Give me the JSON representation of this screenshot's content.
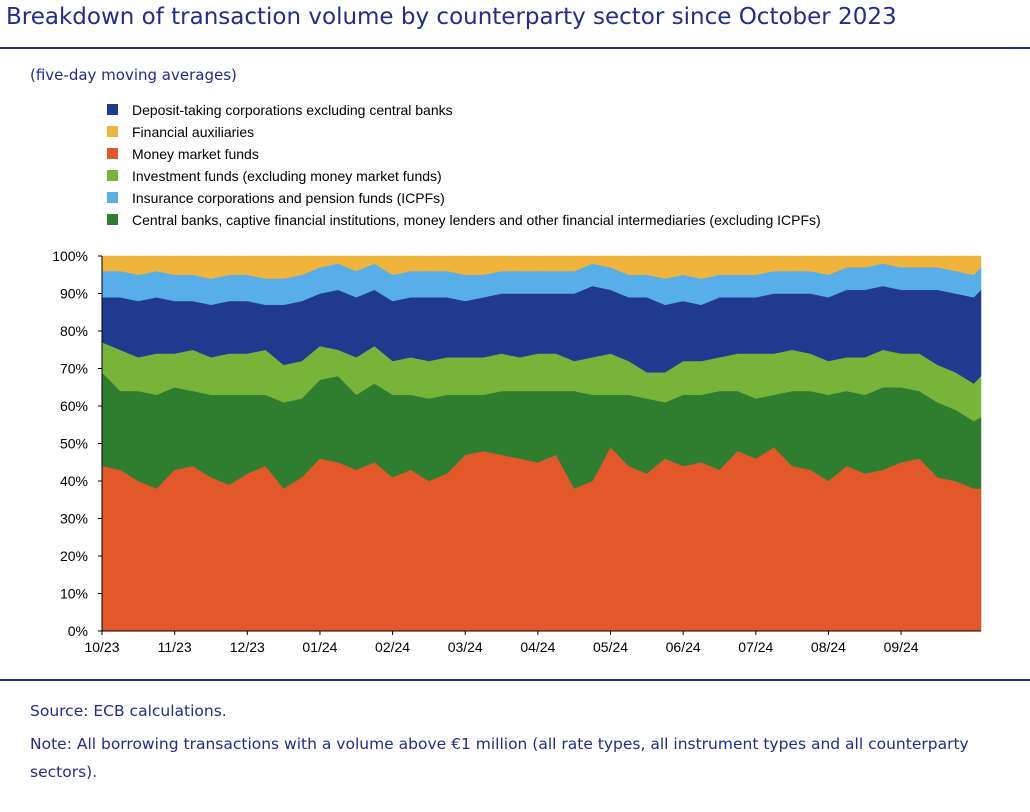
{
  "title": "Breakdown of transaction volume by counterparty sector since October 2023",
  "subtitle": "(five-day moving averages)",
  "source": "Source: ECB calculations.",
  "note": "Note: All borrowing transactions with a volume above €1 million (all rate types, all instrument types and all counterparty sectors).",
  "chart_data": {
    "type": "area",
    "stacked": true,
    "ylim": [
      0,
      100
    ],
    "yticks": [
      "0%",
      "10%",
      "20%",
      "30%",
      "40%",
      "50%",
      "60%",
      "70%",
      "80%",
      "90%",
      "100%"
    ],
    "categories": [
      "10/23",
      "11/23",
      "12/23",
      "01/24",
      "02/24",
      "03/24",
      "04/24",
      "05/24",
      "06/24",
      "07/24",
      "08/24",
      "09/24"
    ],
    "month_starts": [
      0,
      1,
      2,
      3,
      4,
      5,
      6,
      7,
      8,
      9,
      10,
      11
    ],
    "x_end": 12.1,
    "x": [
      0,
      0.25,
      0.5,
      0.75,
      1,
      1.25,
      1.5,
      1.75,
      2,
      2.25,
      2.5,
      2.75,
      3,
      3.25,
      3.5,
      3.75,
      4,
      4.25,
      4.5,
      4.75,
      5,
      5.25,
      5.5,
      5.75,
      6,
      6.25,
      6.5,
      6.75,
      7,
      7.25,
      7.5,
      7.75,
      8,
      8.25,
      8.5,
      8.75,
      9,
      9.25,
      9.5,
      9.75,
      10,
      10.25,
      10.5,
      10.75,
      11,
      11.25,
      11.5,
      11.75,
      12,
      12.1
    ],
    "legend_position": "top-left",
    "series": [
      {
        "name": "Money market funds",
        "color": "#e2582a",
        "values": [
          44,
          43,
          40,
          38,
          43,
          44,
          41,
          39,
          42,
          44,
          38,
          41,
          46,
          45,
          43,
          45,
          41,
          43,
          40,
          42,
          47,
          48,
          47,
          46,
          45,
          47,
          38,
          40,
          49,
          44,
          42,
          46,
          44,
          45,
          43,
          48,
          46,
          49,
          44,
          43,
          40,
          44,
          42,
          43,
          45,
          46,
          41,
          40,
          38,
          38
        ]
      },
      {
        "name": "Central banks, captive financial institutions, money lenders and other financial intermediaries (excluding ICPFs)",
        "color": "#2f7d2f",
        "values": [
          25,
          21,
          24,
          25,
          22,
          20,
          22,
          24,
          21,
          19,
          23,
          21,
          21,
          23,
          20,
          21,
          22,
          20,
          22,
          21,
          16,
          15,
          17,
          18,
          19,
          17,
          26,
          23,
          14,
          19,
          20,
          15,
          19,
          18,
          21,
          16,
          16,
          14,
          20,
          21,
          23,
          20,
          21,
          22,
          20,
          18,
          20,
          19,
          18,
          19
        ]
      },
      {
        "name": "Investment funds (excluding money market funds)",
        "color": "#78b33a",
        "values": [
          8,
          11,
          9,
          11,
          9,
          11,
          10,
          11,
          11,
          12,
          10,
          10,
          9,
          7,
          10,
          10,
          9,
          10,
          10,
          10,
          10,
          10,
          10,
          9,
          10,
          10,
          8,
          10,
          11,
          9,
          7,
          8,
          9,
          9,
          9,
          10,
          12,
          11,
          11,
          10,
          9,
          9,
          10,
          10,
          9,
          10,
          10,
          10,
          10,
          11
        ]
      },
      {
        "name": "Deposit-taking corporations excluding central banks",
        "color": "#1f3a8f",
        "values": [
          12,
          14,
          15,
          15,
          14,
          13,
          14,
          14,
          14,
          12,
          16,
          16,
          14,
          16,
          16,
          15,
          16,
          16,
          17,
          16,
          15,
          16,
          16,
          17,
          16,
          16,
          18,
          19,
          17,
          17,
          20,
          18,
          16,
          15,
          16,
          15,
          15,
          16,
          15,
          16,
          17,
          18,
          18,
          17,
          17,
          17,
          20,
          21,
          23,
          23
        ]
      },
      {
        "name": "Insurance corporations and pension funds (ICPFs)",
        "color": "#58aee8",
        "values": [
          7,
          7,
          7,
          7,
          7,
          7,
          7,
          7,
          7,
          7,
          7,
          7,
          7,
          7,
          7,
          7,
          7,
          7,
          7,
          7,
          7,
          6,
          6,
          6,
          6,
          6,
          6,
          6,
          6,
          6,
          6,
          7,
          7,
          7,
          6,
          6,
          6,
          6,
          6,
          6,
          6,
          6,
          6,
          6,
          6,
          6,
          6,
          6,
          6,
          6
        ]
      },
      {
        "name": "Financial auxiliaries",
        "color": "#f0b43c",
        "values": [
          4,
          4,
          5,
          4,
          5,
          5,
          6,
          5,
          5,
          6,
          6,
          5,
          3,
          2,
          4,
          2,
          5,
          4,
          4,
          4,
          5,
          5,
          4,
          4,
          4,
          4,
          4,
          2,
          3,
          5,
          5,
          6,
          5,
          6,
          5,
          5,
          5,
          4,
          4,
          4,
          5,
          3,
          3,
          2,
          3,
          3,
          3,
          4,
          5,
          3
        ]
      }
    ],
    "legend_order": [
      "Deposit-taking corporations excluding central banks",
      "Financial auxiliaries",
      "Money market funds",
      "Investment funds (excluding money market funds)",
      "Insurance corporations and pension funds (ICPFs)",
      "Central banks, captive financial institutions, money lenders and other financial intermediaries (excluding ICPFs)"
    ]
  }
}
